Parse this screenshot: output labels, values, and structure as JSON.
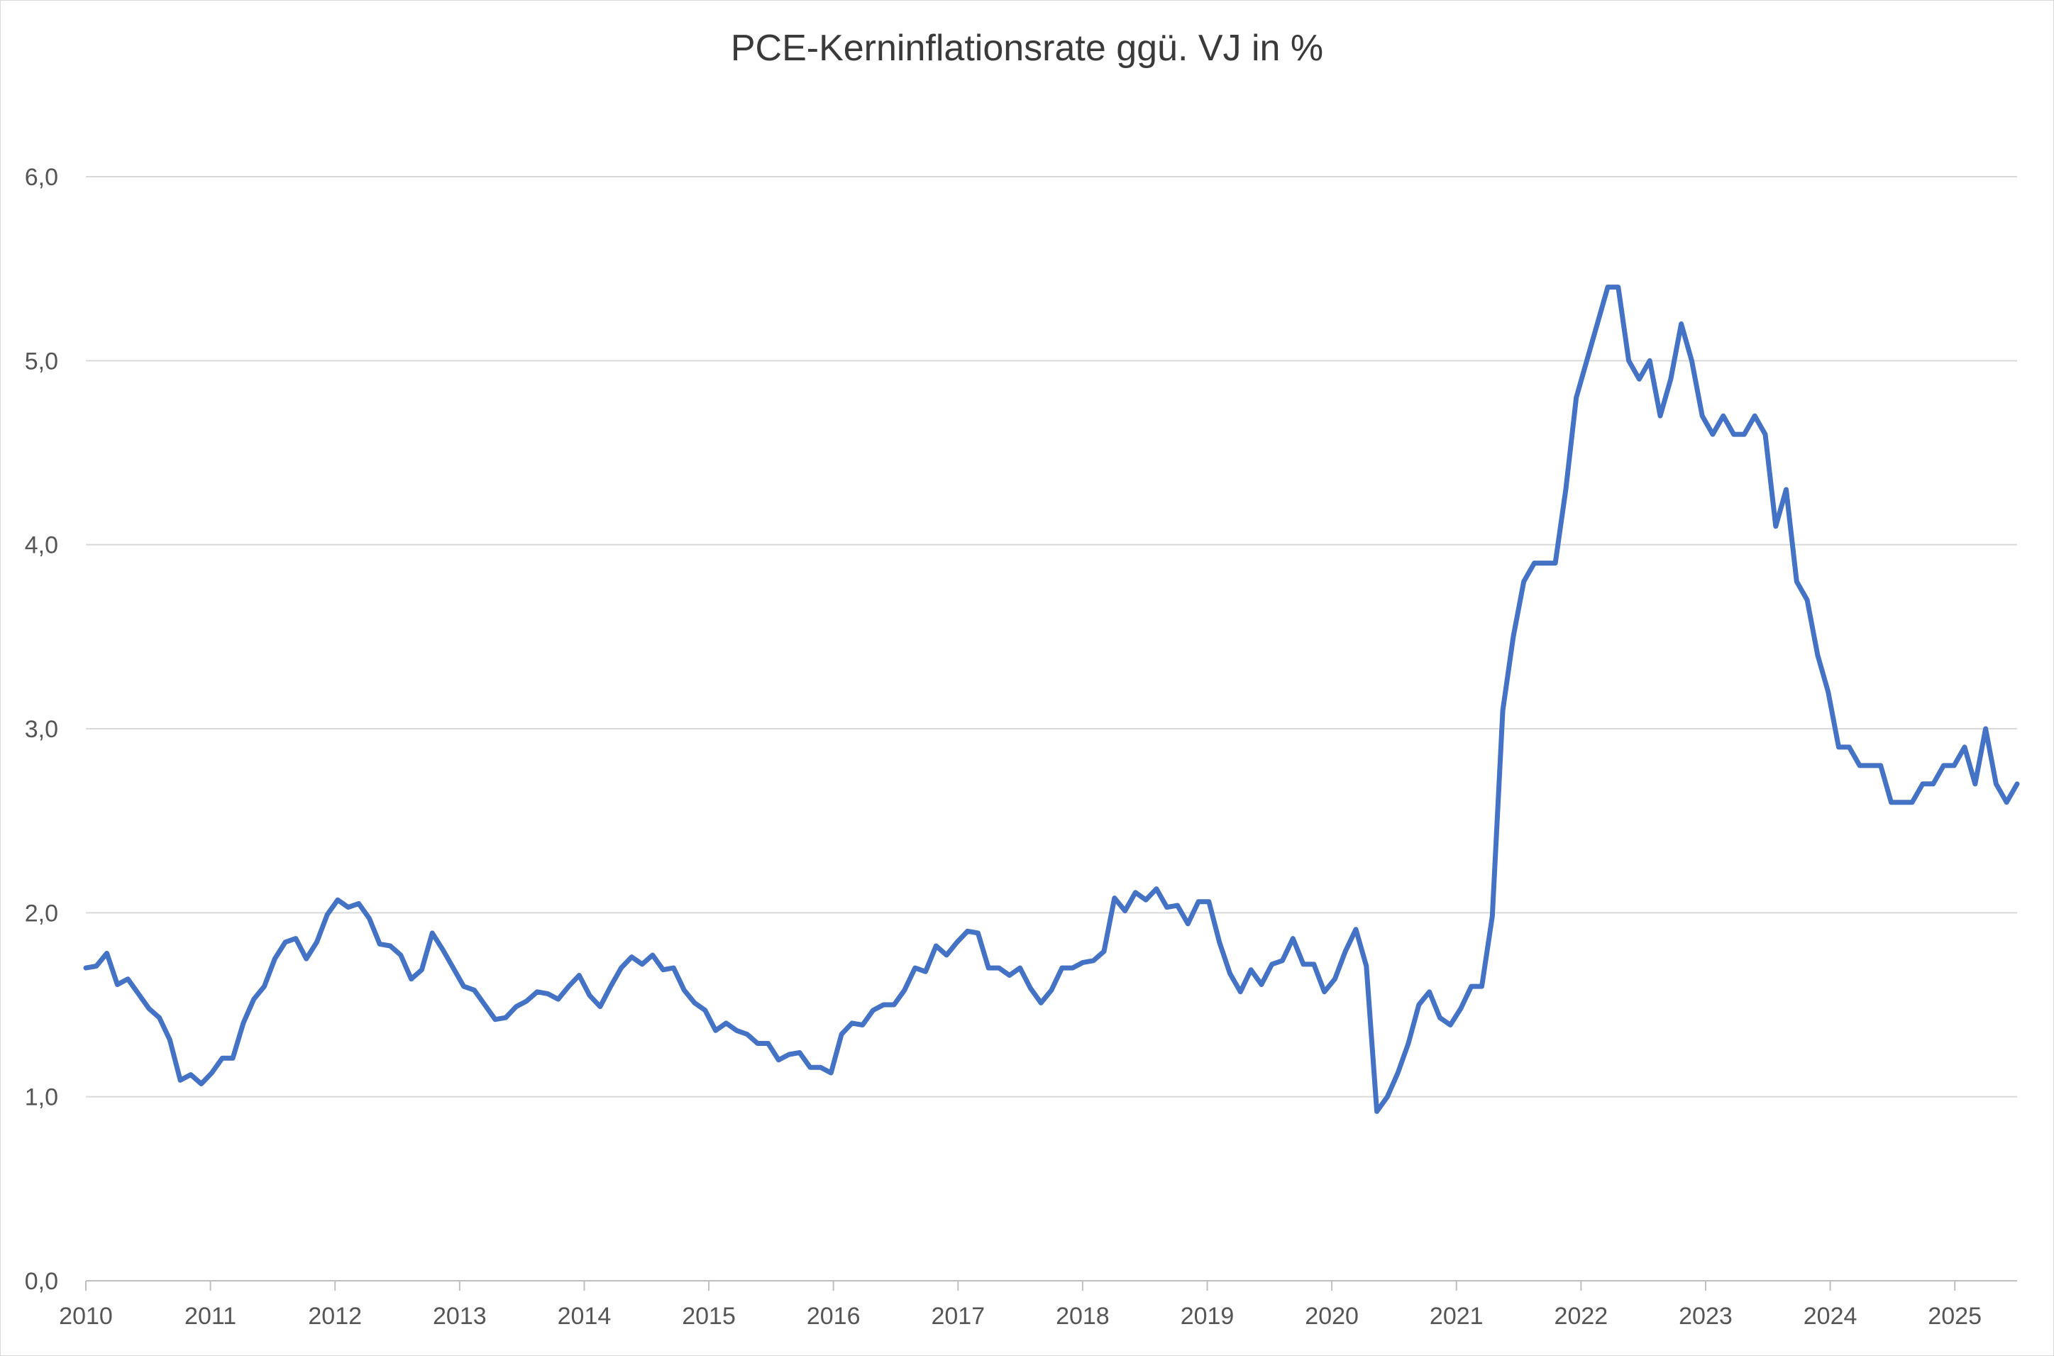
{
  "chart_data": {
    "type": "line",
    "title": "PCE-Kerninflationsrate ggü. VJ in %",
    "xlabel": "",
    "ylabel": "",
    "ylim": [
      0,
      6
    ],
    "xlim": [
      2010,
      2025.5
    ],
    "y_ticks": [
      "0,0",
      "1,0",
      "2,0",
      "3,0",
      "4,0",
      "5,0",
      "6,0"
    ],
    "x_ticks": [
      "2010",
      "2011",
      "2012",
      "2013",
      "2014",
      "2015",
      "2016",
      "2017",
      "2018",
      "2019",
      "2020",
      "2021",
      "2022",
      "2023",
      "2024",
      "2025"
    ],
    "grid": "horizontal",
    "legend": "none",
    "line_color": "#4472c4",
    "series": [
      {
        "values": [
          1.7,
          1.71,
          1.78,
          1.61,
          1.64,
          1.56,
          1.48,
          1.43,
          1.31,
          1.09,
          1.12,
          1.07,
          1.13,
          1.21,
          1.21,
          1.4,
          1.53,
          1.6,
          1.75,
          1.84,
          1.86,
          1.75,
          1.84,
          1.99,
          2.07,
          2.03,
          2.05,
          1.97,
          1.83,
          1.82,
          1.77,
          1.64,
          1.69,
          1.89,
          1.8,
          1.7,
          1.6,
          1.58,
          1.5,
          1.42,
          1.43,
          1.49,
          1.52,
          1.57,
          1.56,
          1.53,
          1.6,
          1.66,
          1.55,
          1.49,
          1.6,
          1.7,
          1.76,
          1.72,
          1.77,
          1.69,
          1.7,
          1.58,
          1.51,
          1.47,
          1.36,
          1.4,
          1.36,
          1.34,
          1.29,
          1.29,
          1.2,
          1.23,
          1.24,
          1.16,
          1.16,
          1.13,
          1.34,
          1.4,
          1.39,
          1.47,
          1.5,
          1.5,
          1.58,
          1.7,
          1.68,
          1.82,
          1.77,
          1.84,
          1.9,
          1.89,
          1.7,
          1.7,
          1.66,
          1.7,
          1.59,
          1.51,
          1.58,
          1.7,
          1.7,
          1.73,
          1.74,
          1.79,
          2.08,
          2.01,
          2.11,
          2.07,
          2.13,
          2.03,
          2.04,
          1.94,
          2.06,
          2.06,
          1.84,
          1.67,
          1.57,
          1.69,
          1.61,
          1.72,
          1.74,
          1.86,
          1.72,
          1.72,
          1.57,
          1.64,
          1.79,
          1.91,
          1.71,
          0.92,
          1.0,
          1.13,
          1.29,
          1.5,
          1.57,
          1.43,
          1.39,
          1.48,
          1.6,
          1.6,
          1.98,
          3.1,
          3.5,
          3.8,
          3.9,
          3.9,
          3.9,
          4.3,
          4.8,
          5.0,
          5.2,
          5.4,
          5.4,
          5.0,
          4.9,
          5.0,
          4.7,
          4.9,
          5.2,
          5.0,
          4.7,
          4.6,
          4.7,
          4.6,
          4.6,
          4.7,
          4.6,
          4.1,
          4.3,
          3.8,
          3.7,
          3.4,
          3.2,
          2.9,
          2.9,
          2.8,
          2.8,
          2.8,
          2.6,
          2.6,
          2.6,
          2.7,
          2.7,
          2.8,
          2.8,
          2.9,
          2.7,
          3.0,
          2.7,
          2.6,
          2.7
        ]
      }
    ]
  }
}
